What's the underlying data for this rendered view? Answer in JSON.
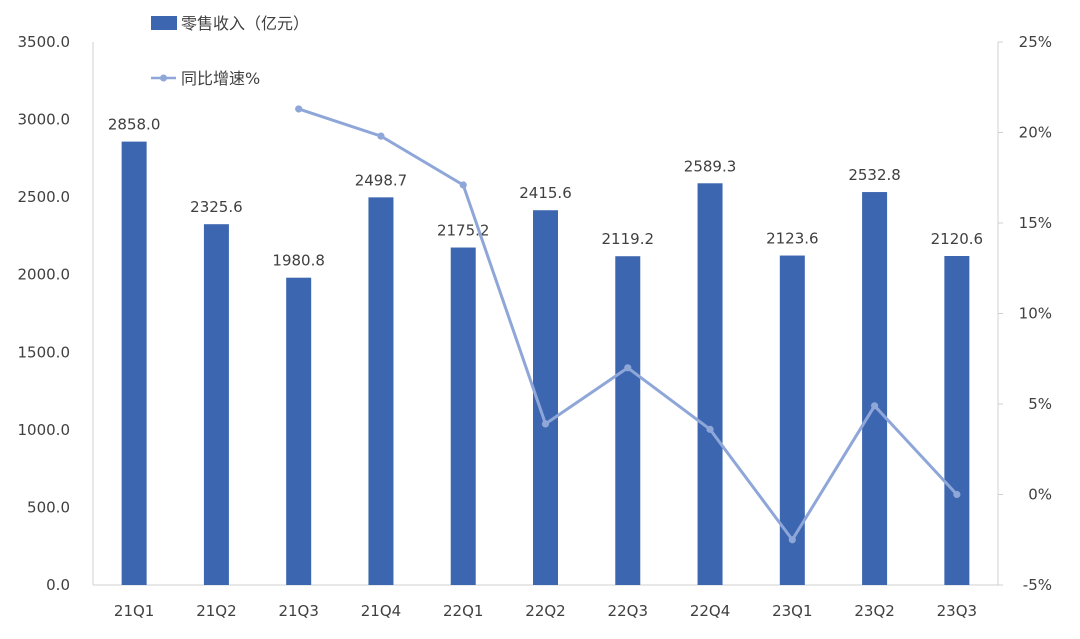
{
  "colors": {
    "bar": "#3d66b0",
    "line": "#8ea6d8",
    "axis": "#d0d0d0",
    "text": "#404040"
  },
  "legend": {
    "bar_label": "零售收入（亿元）",
    "line_label": "同比增速%"
  },
  "chart_data": {
    "type": "bar",
    "categories": [
      "21Q1",
      "21Q2",
      "21Q3",
      "21Q4",
      "22Q1",
      "22Q2",
      "22Q3",
      "22Q4",
      "23Q1",
      "23Q2",
      "23Q3"
    ],
    "series": [
      {
        "name": "零售收入（亿元）",
        "type": "bar",
        "axis": "left",
        "values": [
          2858.0,
          2325.6,
          1980.8,
          2498.7,
          2175.2,
          2415.6,
          2119.2,
          2589.3,
          2123.6,
          2532.8,
          2120.6
        ],
        "data_labels": [
          "2858.0",
          "2325.6",
          "1980.8",
          "2498.7",
          "2175.2",
          "2415.6",
          "2119.2",
          "2589.3",
          "2123.6",
          "2532.8",
          "2120.6"
        ]
      },
      {
        "name": "同比增速%",
        "type": "line",
        "axis": "right",
        "values": [
          null,
          null,
          21.3,
          19.8,
          17.1,
          3.9,
          7.0,
          3.6,
          -2.5,
          4.9,
          0.0
        ]
      }
    ],
    "y_left": {
      "ylim": [
        0,
        3500
      ],
      "ticks": [
        0,
        500,
        1000,
        1500,
        2000,
        2500,
        3000,
        3500
      ],
      "tick_labels": [
        "0.0",
        "500.0",
        "1000.0",
        "1500.0",
        "2000.0",
        "2500.0",
        "3000.0",
        "3500.0"
      ]
    },
    "y_right": {
      "ylim": [
        -5,
        25
      ],
      "ticks": [
        -5,
        0,
        5,
        10,
        15,
        20,
        25
      ],
      "tick_labels": [
        "-5%",
        "0%",
        "5%",
        "10%",
        "15%",
        "20%",
        "25%"
      ]
    },
    "grid": false,
    "legend_position": "top-left"
  }
}
